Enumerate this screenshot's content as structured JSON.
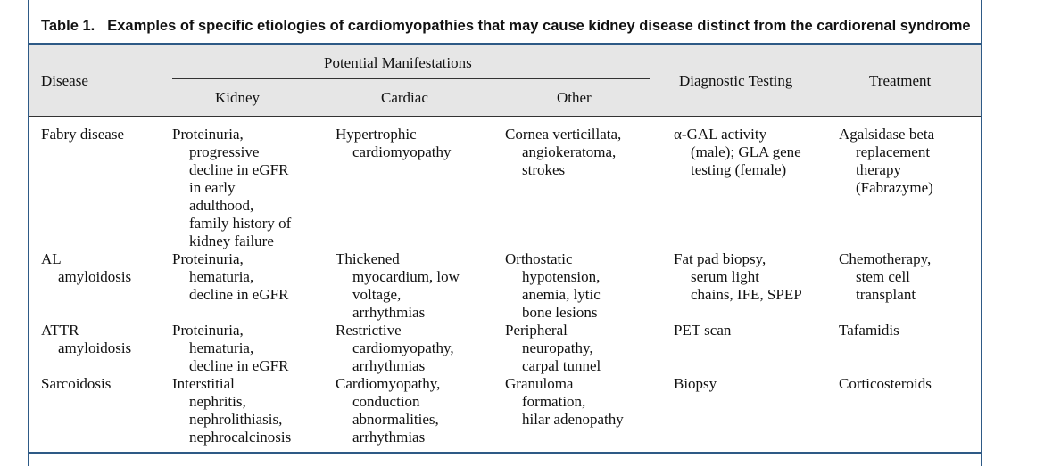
{
  "table": {
    "label": "Table 1.",
    "title": "Examples of specific etiologies of cardiomyopathies that may cause kidney disease distinct from the cardiorenal syndrome",
    "headers": {
      "disease": "Disease",
      "potential": "Potential Manifestations",
      "kidney": "Kidney",
      "cardiac": "Cardiac",
      "other": "Other",
      "diagnostic": "Diagnostic Testing",
      "treatment": "Treatment"
    },
    "rows": [
      {
        "disease": [
          "Fabry disease"
        ],
        "kidney": [
          "Proteinuria,",
          "progressive",
          "decline in eGFR",
          "in early",
          "adulthood,",
          "family history of",
          "kidney failure"
        ],
        "cardiac": [
          "Hypertrophic",
          "cardiomyopathy"
        ],
        "other": [
          "Cornea verticillata,",
          "angiokeratoma,",
          "strokes"
        ],
        "diagnostic": [
          "α-GAL activity",
          "(male); GLA gene",
          "testing (female)"
        ],
        "treatment": [
          "Agalsidase beta",
          "replacement",
          "therapy",
          "(Fabrazyme)"
        ]
      },
      {
        "disease": [
          "AL",
          "amyloidosis"
        ],
        "kidney": [
          "Proteinuria,",
          "hematuria,",
          "decline in eGFR"
        ],
        "cardiac": [
          "Thickened",
          "myocardium, low",
          "voltage,",
          "arrhythmias"
        ],
        "other": [
          "Orthostatic",
          "hypotension,",
          "anemia, lytic",
          "bone lesions"
        ],
        "diagnostic": [
          "Fat pad biopsy,",
          "serum light",
          "chains, IFE, SPEP"
        ],
        "treatment": [
          "Chemotherapy,",
          "stem cell",
          "transplant"
        ]
      },
      {
        "disease": [
          "ATTR",
          "amyloidosis"
        ],
        "kidney": [
          "Proteinuria,",
          "hematuria,",
          "decline in eGFR"
        ],
        "cardiac": [
          "Restrictive",
          "cardiomyopathy,",
          "arrhythmias"
        ],
        "other": [
          "Peripheral",
          "neuropathy,",
          "carpal tunnel"
        ],
        "diagnostic": [
          "PET scan"
        ],
        "treatment": [
          "Tafamidis"
        ]
      },
      {
        "disease": [
          "Sarcoidosis"
        ],
        "kidney": [
          "Interstitial",
          "nephritis,",
          "nephrolithiasis,",
          "nephrocalcinosis"
        ],
        "cardiac": [
          "Cardiomyopathy,",
          "conduction",
          "abnormalities,",
          "arrhythmias"
        ],
        "other": [
          "Granuloma",
          "formation,",
          "hilar adenopathy"
        ],
        "diagnostic": [
          "Biopsy"
        ],
        "treatment": [
          "Corticosteroids"
        ]
      }
    ]
  }
}
